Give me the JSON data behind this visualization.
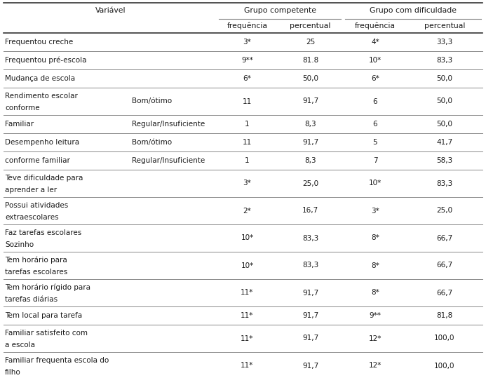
{
  "rows": [
    {
      "col1": "Frequentou creche",
      "col2": "",
      "col3": "3*",
      "col4": "25",
      "col5": "4*",
      "col6": "33,3"
    },
    {
      "col1": "Frequentou pré-escola",
      "col2": "",
      "col3": "9**",
      "col4": "81.8",
      "col5": "10*",
      "col6": "83,3"
    },
    {
      "col1": "Mudança de escola",
      "col2": "",
      "col3": "6*",
      "col4": "50,0",
      "col5": "6*",
      "col6": "50,0"
    },
    {
      "col1": "Rendimento escolar\nconforme",
      "col2": "Bom/ótimo",
      "col3": "11",
      "col4": "91,7",
      "col5": "6",
      "col6": "50,0"
    },
    {
      "col1": "Familiar",
      "col2": "Regular/Insuficiente",
      "col3": "1",
      "col4": "8,3",
      "col5": "6",
      "col6": "50,0"
    },
    {
      "col1": "Desempenho leitura",
      "col2": "Bom/ótimo",
      "col3": "11",
      "col4": "91,7",
      "col5": "5",
      "col6": "41,7"
    },
    {
      "col1": "conforme familiar",
      "col2": "Regular/Insuficiente",
      "col3": "1",
      "col4": "8,3",
      "col5": "7",
      "col6": "58,3"
    },
    {
      "col1": "Teve dificuldade para\naprender a ler",
      "col2": "",
      "col3": "3*",
      "col4": "25,0",
      "col5": "10*",
      "col6": "83,3"
    },
    {
      "col1": "Possui atividades\nextraescolares",
      "col2": "",
      "col3": "2*",
      "col4": "16,7",
      "col5": "3*",
      "col6": "25,0"
    },
    {
      "col1": "Faz tarefas escolares\nSozinho",
      "col2": "",
      "col3": "10*",
      "col4": "83,3",
      "col5": "8*",
      "col6": "66,7"
    },
    {
      "col1": "Tem horário para\ntarefas escolares",
      "col2": "",
      "col3": "10*",
      "col4": "83,3",
      "col5": "8*",
      "col6": "66,7"
    },
    {
      "col1": "Tem horário rígido para\ntarefas diárias",
      "col2": "",
      "col3": "11*",
      "col4": "91,7",
      "col5": "8*",
      "col6": "66,7"
    },
    {
      "col1": "Tem local para tarefa",
      "col2": "",
      "col3": "11*",
      "col4": "91,7",
      "col5": "9**",
      "col6": "81,8"
    },
    {
      "col1": "Familiar satisfeito com\na escola",
      "col2": "",
      "col3": "11*",
      "col4": "91,7",
      "col5": "12*",
      "col6": "100,0"
    },
    {
      "col1": "Familiar frequenta escola do\nfilho",
      "col2": "",
      "col3": "11*",
      "col4": "91,7",
      "col5": "12*",
      "col6": "100,0"
    }
  ],
  "bg_color": "#ffffff",
  "text_color": "#1a1a1a",
  "line_color": "#888888",
  "font_size": 7.5,
  "header_font_size": 7.8
}
